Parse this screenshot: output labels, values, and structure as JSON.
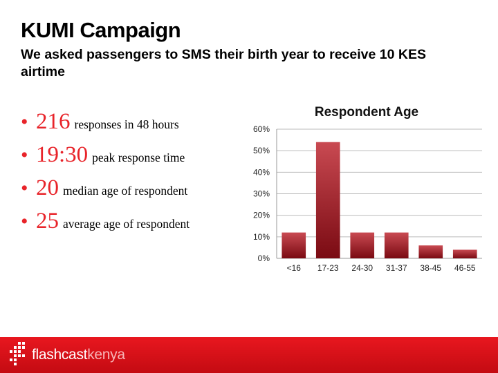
{
  "slide": {
    "title": "KUMI Campaign",
    "subtitle": "We asked passengers to SMS their birth year to receive 10 KES airtime"
  },
  "stats": [
    {
      "value": "216",
      "text": "responses in 48 hours"
    },
    {
      "value": "19:30",
      "text": "peak response time"
    },
    {
      "value": "20",
      "text": "median age of respondent"
    },
    {
      "value": "25",
      "text": "average age of respondent"
    }
  ],
  "footer": {
    "brand": "flashcast",
    "brand_suffix": "kenya",
    "logo_icon": "pixel-grid-logo-icon"
  },
  "colors": {
    "accent": "#e8242a",
    "bar_top": "#c94a52",
    "bar_bottom": "#7a0a12",
    "footer": "#d91219"
  },
  "chart_data": {
    "type": "bar",
    "title": "Respondent Age",
    "categories": [
      "<16",
      "17-23",
      "24-30",
      "31-37",
      "38-45",
      "46-55"
    ],
    "values": [
      12,
      54,
      12,
      12,
      6,
      4
    ],
    "ylim": [
      0,
      60
    ],
    "yticks": [
      0,
      10,
      20,
      30,
      40,
      50,
      60
    ],
    "yticklabels": [
      "0%",
      "10%",
      "20%",
      "30%",
      "40%",
      "50%",
      "60%"
    ],
    "grid": true,
    "xlabel": "",
    "ylabel": ""
  }
}
